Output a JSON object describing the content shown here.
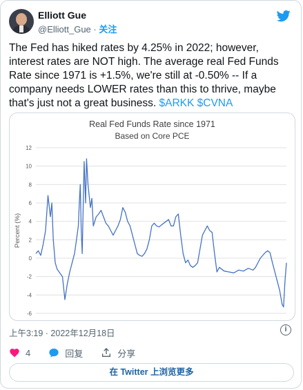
{
  "author": {
    "name": "Elliott Gue",
    "handle": "@Elliott_Gue",
    "separator": "·",
    "follow_label": "关注"
  },
  "tweet": {
    "text": "The Fed has hiked rates by 4.25% in 2022; however, interest rates are NOT high. The average real Fed Funds Rate since 1971 is +1.5%, we're still at -0.50% -- If a company needs LOWER rates than this to thrive, maybe that's just not a great business. ",
    "cashtags": [
      "$ARKK",
      "$CVNA"
    ]
  },
  "timestamp": "上午3:19 · 2022年12月18日",
  "actions": {
    "likes": "4",
    "reply_label": "回复",
    "share_label": "分享"
  },
  "view_button": "在 Twitter 上浏览更多",
  "colors": {
    "accent": "#1d9bf0",
    "like": "#f91880",
    "line": "#4472c4"
  },
  "icons": [
    "twitter-bird-icon",
    "info-icon",
    "heart-icon",
    "reply-bubble-icon",
    "share-icon"
  ],
  "chart_data": {
    "type": "line",
    "title": "Real Fed Funds Rate since 1971",
    "subtitle": "Based on Core PCE",
    "ylabel": "Percent (%)",
    "xlabel": "",
    "ylim": [
      -6,
      12
    ],
    "yticks": [
      -6,
      -4,
      -2,
      0,
      2,
      4,
      6,
      8,
      10,
      12
    ],
    "grid": true,
    "x_range": [
      1971,
      2022.9
    ],
    "series": [
      {
        "x": [
          1971,
          1971.5,
          1972,
          1972.5,
          1973,
          1973.5,
          1974,
          1974.3,
          1974.6,
          1975,
          1975.4,
          1975.8,
          1976.5,
          1977,
          1977.5,
          1978,
          1978.5,
          1979,
          1979.4,
          1979.8,
          1980,
          1980.2,
          1980.4,
          1980.6,
          1981,
          1981.3,
          1981.5,
          1981.8,
          1982,
          1982.3,
          1982.6,
          1982.9,
          1983.5,
          1984,
          1984.5,
          1985,
          1985.5,
          1986,
          1986.5,
          1987,
          1987.5,
          1988,
          1988.5,
          1989,
          1989.5,
          1990,
          1990.5,
          1991,
          1991.5,
          1992,
          1992.5,
          1993,
          1993.5,
          1994,
          1994.5,
          1995,
          1995.5,
          1996,
          1996.5,
          1997,
          1997.5,
          1998,
          1998.5,
          1999,
          1999.5,
          2000,
          2000.5,
          2001,
          2001.5,
          2002,
          2002.5,
          2003,
          2003.5,
          2004,
          2004.5,
          2005,
          2005.5,
          2006,
          2006.5,
          2007,
          2007.5,
          2008,
          2008.5,
          2009,
          2010,
          2011,
          2012,
          2013,
          2014,
          2015,
          2016,
          2016.5,
          2017,
          2017.5,
          2018,
          2018.5,
          2019,
          2019.5,
          2020,
          2020.5,
          2021,
          2021.5,
          2022,
          2022.3,
          2022.6,
          2022.9
        ],
        "y": [
          0.5,
          0.8,
          0.3,
          1.5,
          3.0,
          6.8,
          4.5,
          6.0,
          2.0,
          -0.5,
          -1.2,
          -1.5,
          -2.0,
          -4.5,
          -2.8,
          -1.5,
          -0.5,
          0.5,
          2.0,
          3.5,
          6.0,
          8.0,
          3.0,
          0.5,
          10.5,
          6.0,
          10.8,
          8.0,
          7.0,
          5.5,
          6.5,
          3.5,
          4.5,
          4.8,
          5.2,
          4.5,
          3.8,
          3.5,
          3.0,
          2.5,
          3.0,
          3.5,
          4.2,
          5.5,
          5.0,
          4.0,
          3.5,
          2.5,
          1.5,
          0.5,
          0.3,
          0.2,
          0.5,
          1.0,
          2.0,
          3.5,
          3.8,
          3.5,
          3.4,
          3.6,
          3.8,
          4.0,
          4.2,
          3.5,
          3.5,
          4.5,
          4.8,
          2.5,
          0.5,
          -0.5,
          -0.2,
          -0.8,
          -1.0,
          -0.8,
          -0.5,
          1.0,
          2.5,
          3.0,
          3.5,
          3.0,
          2.8,
          0.5,
          -1.5,
          -1.0,
          -1.4,
          -1.5,
          -1.6,
          -1.3,
          -1.4,
          -1.1,
          -1.3,
          -1.0,
          -0.5,
          0.0,
          0.3,
          0.6,
          0.8,
          0.6,
          -0.5,
          -1.5,
          -2.5,
          -3.5,
          -5.0,
          -5.3,
          -2.5,
          -0.5
        ]
      }
    ]
  }
}
